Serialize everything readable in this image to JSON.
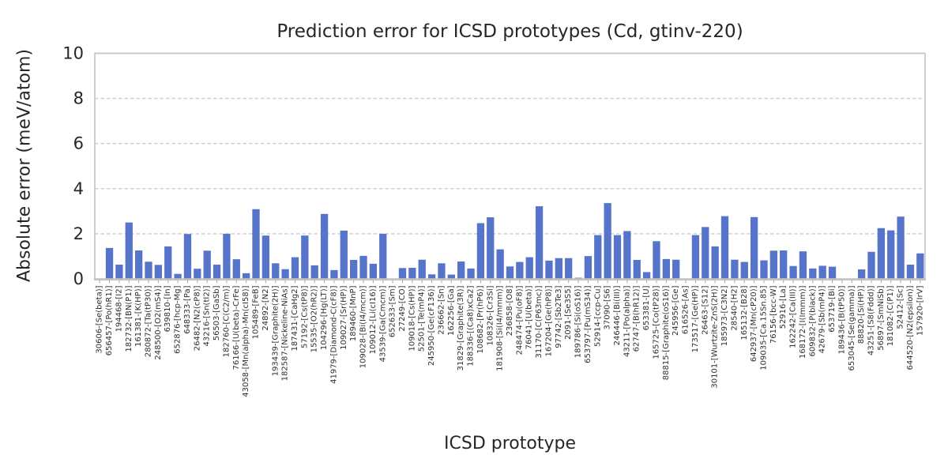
{
  "chart_data": {
    "type": "bar",
    "title": "Prediction error for ICSD prototypes (Cd, gtinv-220)",
    "xlabel": "ICSD prototype",
    "ylabel": "Absolute error (meV/atom)",
    "ylim": [
      0,
      10
    ],
    "yticks": [
      0,
      2,
      4,
      6,
      8,
      10
    ],
    "grid": "horizontal dashed",
    "legend": "none",
    "bar_color": "#5674C9",
    "grid_color": "#cccccc",
    "spine_color": "#c3c3c3",
    "tick_color": "#b0b0b0",
    "categories": [
      "30606-[Se(beta)]",
      "656457-[Po(hR1)]",
      "194468-[I2]",
      "182732-[BN(P1)]",
      "161381-[K(HP)]",
      "280872-[Ta(tP30)]",
      "248500-[O2(mS4)]",
      "639810-[In]",
      "652876-[hcp-Mg]",
      "648333-[Pa]",
      "26482-[N2(cP8)]",
      "43216-[Sn(tI2)]",
      "56503-[GaSb]",
      "182760-[C(C2/m)]",
      "76166-[U(beta)-CrFe]",
      "43058-[Mn(alpha)-Mn(cI58)]",
      "105489-[FeB]",
      "24892-[N2]",
      "193439-[Graphite(2H)]",
      "182587-[Nickeline-NiAs]",
      "187431-[CaHg2]",
      "57192-[Cs(tP8)]",
      "15535-[O2(hR2)]",
      "104296-[Hg(LT)]",
      "41979-[Diamond-C(cF8)]",
      "109027-[Sr(HP)]",
      "189460-[MnP]",
      "109028-[Bi(I4/mcm)]",
      "109012-[Li(cI16)]",
      "43539-[Ga(Cmcm)]",
      "652633-[Sm]",
      "27249-[CO]",
      "109018-[Cs(HP)]",
      "52501-[Te(mP4)]",
      "245950-[Ge(cF136)]",
      "236662-[Sn]",
      "162256-[Ga]",
      "31829-[Graphite(3R)]",
      "188336-[(Ca8)xCa2]",
      "108682-[Pr(hP6)]",
      "108326-[Cr3Si]",
      "181908-[Si(I4/mmm)]",
      "236858-[O8]",
      "248474-[Pu(oF8)]",
      "76041-[U(beta)]",
      "31170-[C(P63mc)]",
      "167204-[Ge(hP8)]",
      "97742-[Sb2Te3]",
      "2091-[Se3S5]",
      "189786-[Si(oS16)]",
      "653797-[Pu(mS34)]",
      "52914-[ccp-Cu]",
      "37090-[S6]",
      "246446-[Bi(III)]",
      "43211-[Po(alpha)]",
      "62747-[B(hR12)]",
      "653381-[U]",
      "165725-[Co(tP28)]",
      "88815-[Graphite(oS16)]",
      "245956-[Ge]",
      "616526-[As]",
      "173517-[Ge(HP)]",
      "26463-[S12]",
      "30101-[Wurtzite-ZnS(2H)]",
      "185973-[C3N2]",
      "28540-[H2]",
      "165132-[B28]",
      "642937-[Mn(cP20)]",
      "109035-[Ca.15Sn.85]",
      "76156-[bcc-W]",
      "52916-[La]",
      "162242-[Ca(III)]",
      "168172-[I(Immm)]",
      "609832-[P(black)]",
      "42679-[Sb(mP4)]",
      "653719-[Bi]",
      "189436-[B(tP50)]",
      "653045-[Se(gamma)]",
      "88820-[Si(HP)]",
      "43251-[S8(Fddd)]",
      "56897-[SmNiSb]",
      "181082-[C(P1)]",
      "52412-[Sc]",
      "644520-[N2(epsilon)]",
      "157920-[IrV]"
    ],
    "values": [
      0.0,
      1.37,
      0.63,
      2.5,
      1.26,
      0.76,
      0.62,
      1.44,
      0.22,
      1.99,
      0.45,
      1.25,
      0.63,
      2.0,
      0.87,
      0.25,
      3.09,
      1.92,
      0.69,
      0.43,
      0.96,
      1.92,
      0.6,
      2.88,
      0.39,
      2.14,
      0.84,
      1.02,
      0.67,
      2.0,
      0.0,
      0.48,
      0.49,
      0.85,
      0.2,
      0.69,
      0.19,
      0.77,
      0.46,
      2.47,
      2.73,
      1.31,
      0.55,
      0.75,
      0.96,
      3.22,
      0.81,
      0.92,
      0.92,
      0.05,
      1.01,
      1.94,
      3.36,
      1.94,
      2.12,
      0.84,
      0.3,
      1.67,
      0.88,
      0.85,
      0.0,
      1.94,
      2.3,
      1.44,
      2.78,
      0.85,
      0.75,
      2.74,
      0.82,
      1.25,
      1.26,
      0.57,
      1.22,
      0.46,
      0.58,
      0.54,
      0.0,
      0.0,
      0.42,
      1.2,
      2.25,
      2.15,
      2.76,
      0.63,
      1.13
    ]
  }
}
